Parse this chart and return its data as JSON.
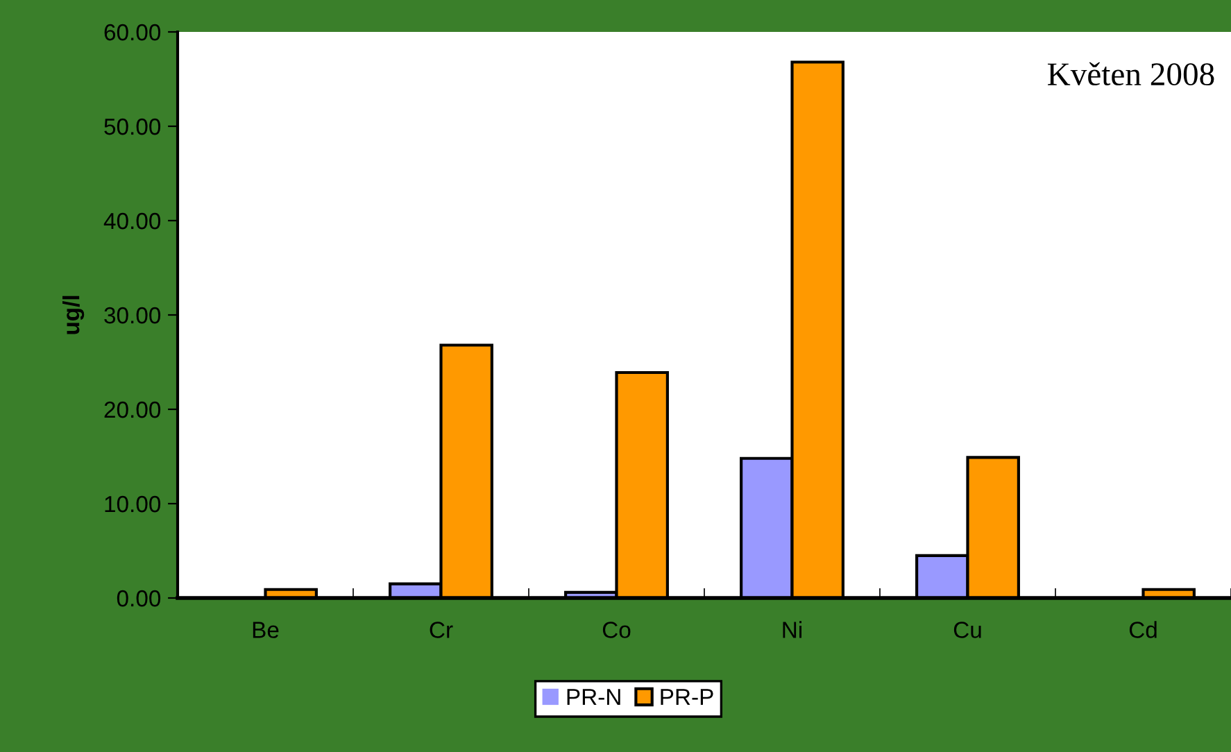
{
  "chart_data": {
    "type": "bar",
    "ylabel": "ug/l",
    "annotations": [
      "Květen 2008"
    ],
    "categories": [
      "Be",
      "Cr",
      "Co",
      "Ni",
      "Cu",
      "Cd"
    ],
    "series": [
      {
        "name": "PR-N",
        "color": "#9999ff",
        "values": [
          0,
          1.5,
          0.6,
          14.8,
          4.5,
          0
        ]
      },
      {
        "name": "PR-P",
        "color": "#ff9900",
        "values": [
          0.9,
          26.8,
          23.9,
          56.8,
          14.9,
          0.9
        ]
      }
    ],
    "ylim": [
      0,
      60
    ],
    "yticks": [
      {
        "value": 0,
        "label": "0.00"
      },
      {
        "value": 10,
        "label": "10.00"
      },
      {
        "value": 20,
        "label": "20.00"
      },
      {
        "value": 30,
        "label": "30.00"
      },
      {
        "value": 40,
        "label": "40.00"
      },
      {
        "value": 50,
        "label": "50.00"
      },
      {
        "value": 60,
        "label": "60.00"
      }
    ],
    "grid": false,
    "legend": "bottom"
  }
}
